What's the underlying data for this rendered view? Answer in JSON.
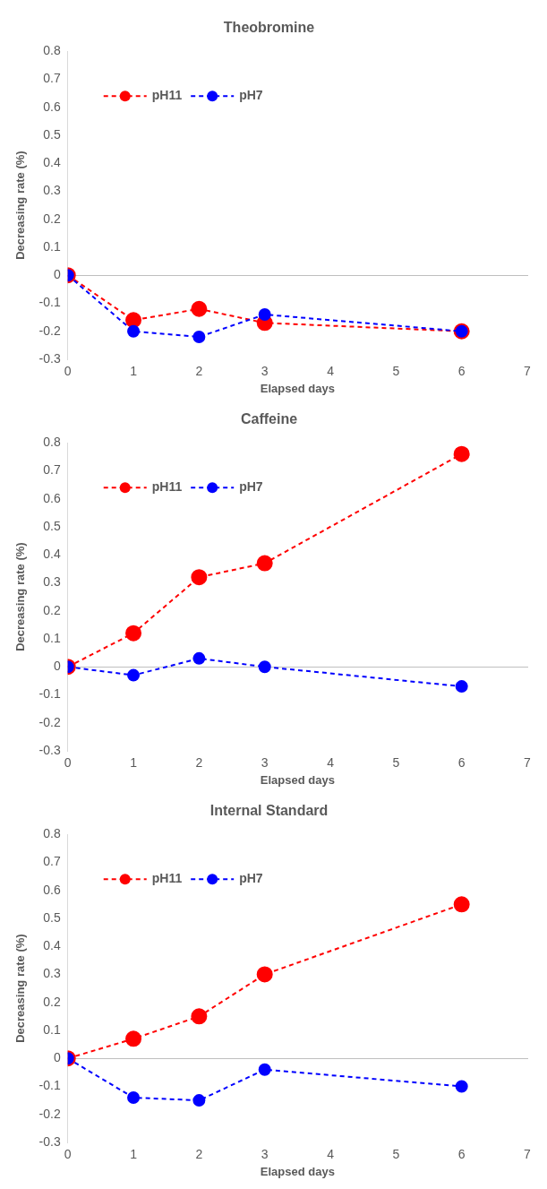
{
  "chart_data": [
    {
      "type": "line",
      "title": "Theobromine",
      "xlabel": "Elapsed days",
      "ylabel": "Decreasing rate (%)",
      "x": [
        0,
        1,
        2,
        3,
        6
      ],
      "series": [
        {
          "name": "pH11",
          "color": "#ff0000",
          "values": [
            0,
            -0.16,
            -0.12,
            -0.17,
            -0.2
          ]
        },
        {
          "name": "pH7",
          "color": "#0000ff",
          "values": [
            0,
            -0.2,
            -0.22,
            -0.14,
            -0.2
          ]
        }
      ],
      "xlim": [
        0,
        7
      ],
      "xticks": [
        0,
        1,
        2,
        3,
        4,
        5,
        6,
        7
      ],
      "ylim": [
        -0.3,
        0.8
      ],
      "yticks": [
        -0.3,
        -0.2,
        -0.1,
        0,
        0.1,
        0.2,
        0.3,
        0.4,
        0.5,
        0.6,
        0.7,
        0.8
      ],
      "legend": "top left",
      "marker": "circle",
      "line_style": "dashed"
    },
    {
      "type": "line",
      "title": "Caffeine",
      "xlabel": "Elapsed days",
      "ylabel": "Decreasing rate (%)",
      "x": [
        0,
        1,
        2,
        3,
        6
      ],
      "series": [
        {
          "name": "pH11",
          "color": "#ff0000",
          "values": [
            0,
            0.12,
            0.32,
            0.37,
            0.76
          ]
        },
        {
          "name": "pH7",
          "color": "#0000ff",
          "values": [
            0,
            -0.03,
            0.03,
            0,
            -0.07
          ]
        }
      ],
      "xlim": [
        0,
        7
      ],
      "xticks": [
        0,
        1,
        2,
        3,
        4,
        5,
        6,
        7
      ],
      "ylim": [
        -0.3,
        0.8
      ],
      "yticks": [
        -0.3,
        -0.2,
        -0.1,
        0,
        0.1,
        0.2,
        0.3,
        0.4,
        0.5,
        0.6,
        0.7,
        0.8
      ],
      "legend": "top left",
      "marker": "circle",
      "line_style": "dashed"
    },
    {
      "type": "line",
      "title": "Internal Standard",
      "xlabel": "Elapsed days",
      "ylabel": "Decreasing rate (%)",
      "x": [
        0,
        1,
        2,
        3,
        6
      ],
      "series": [
        {
          "name": "pH11",
          "color": "#ff0000",
          "values": [
            0,
            0.07,
            0.15,
            0.3,
            0.55
          ]
        },
        {
          "name": "pH7",
          "color": "#0000ff",
          "values": [
            0,
            -0.14,
            -0.15,
            -0.04,
            -0.1
          ]
        }
      ],
      "xlim": [
        0,
        7
      ],
      "xticks": [
        0,
        1,
        2,
        3,
        4,
        5,
        6,
        7
      ],
      "ylim": [
        -0.3,
        0.8
      ],
      "yticks": [
        -0.3,
        -0.2,
        -0.1,
        0,
        0.1,
        0.2,
        0.3,
        0.4,
        0.5,
        0.6,
        0.7,
        0.8
      ],
      "legend": "top left",
      "marker": "circle",
      "line_style": "dashed"
    }
  ]
}
